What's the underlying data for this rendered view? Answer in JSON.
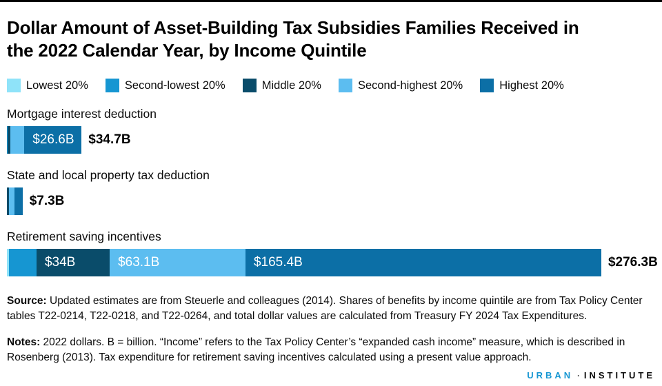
{
  "page": {
    "title_line1": "Dollar Amount of Asset-Building Tax Subsidies Families Received in",
    "title_line2": "the 2022 Calendar Year, by Income Quintile"
  },
  "legend": {
    "items": [
      {
        "label": "Lowest 20%",
        "color": "#8FE3F9"
      },
      {
        "label": "Second-lowest 20%",
        "color": "#1696D2"
      },
      {
        "label": "Middle 20%",
        "color": "#0A4C6A"
      },
      {
        "label": "Second-highest 20%",
        "color": "#5CBDF0"
      },
      {
        "label": "Highest 20%",
        "color": "#0C6FA6"
      }
    ]
  },
  "chart_data": {
    "type": "bar",
    "orientation": "horizontal",
    "stacked": true,
    "title": "Dollar Amount of Asset-Building Tax Subsidies Families Received in the 2022 Calendar Year, by Income Quintile",
    "unit": "billions of 2022 dollars",
    "xlim": [
      0,
      276.3
    ],
    "series_names": [
      "Lowest 20%",
      "Second-lowest 20%",
      "Middle 20%",
      "Second-highest 20%",
      "Highest 20%"
    ],
    "rows": [
      {
        "label": "Mortgage interest deduction",
        "total": 34.7,
        "total_label": "$34.7B",
        "segments": [
          {
            "name": "Lowest 20%",
            "value": 0.1,
            "label": ""
          },
          {
            "name": "Second-lowest 20%",
            "value": 0.2,
            "label": ""
          },
          {
            "name": "Middle 20%",
            "value": 1.3,
            "label": ""
          },
          {
            "name": "Second-highest 20%",
            "value": 6.5,
            "label": ""
          },
          {
            "name": "Highest 20%",
            "value": 26.6,
            "label": "$26.6B"
          }
        ]
      },
      {
        "label": "State and local property tax deduction",
        "total": 7.3,
        "total_label": "$7.3B",
        "segments": [
          {
            "name": "Lowest 20%",
            "value": 0.0,
            "label": ""
          },
          {
            "name": "Second-lowest 20%",
            "value": 0.1,
            "label": ""
          },
          {
            "name": "Middle 20%",
            "value": 1.0,
            "label": ""
          },
          {
            "name": "Second-highest 20%",
            "value": 2.5,
            "label": ""
          },
          {
            "name": "Highest 20%",
            "value": 3.7,
            "label": ""
          }
        ]
      },
      {
        "label": "Retirement saving incentives",
        "total": 276.3,
        "total_label": "$276.3B",
        "segments": [
          {
            "name": "Lowest 20%",
            "value": 1.0,
            "label": ""
          },
          {
            "name": "Second-lowest 20%",
            "value": 12.8,
            "label": ""
          },
          {
            "name": "Middle 20%",
            "value": 34.0,
            "label": "$34B"
          },
          {
            "name": "Second-highest 20%",
            "value": 63.1,
            "label": "$63.1B"
          },
          {
            "name": "Highest 20%",
            "value": 165.4,
            "label": "$165.4B"
          }
        ]
      }
    ]
  },
  "source": {
    "prefix": "Source:",
    "text": " Updated estimates are from Steuerle and colleagues (2014). Shares of benefits by income quintile are from Tax Policy Center tables T22-0214, T22-0218, and T22-0264, and total dollar values are calculated from Treasury FY 2024 Tax Expenditures."
  },
  "notes": {
    "prefix": "Notes:",
    "text": " 2022 dollars. B = billion. “Income” refers to the Tax Policy Center’s “expanded cash income” measure, which is described in Rosenberg (2013). Tax expenditure for retirement saving incentives calculated using a present value approach."
  },
  "footer": {
    "brand_left": "URBAN",
    "separator": "·",
    "brand_right": "INSTITUTE"
  }
}
